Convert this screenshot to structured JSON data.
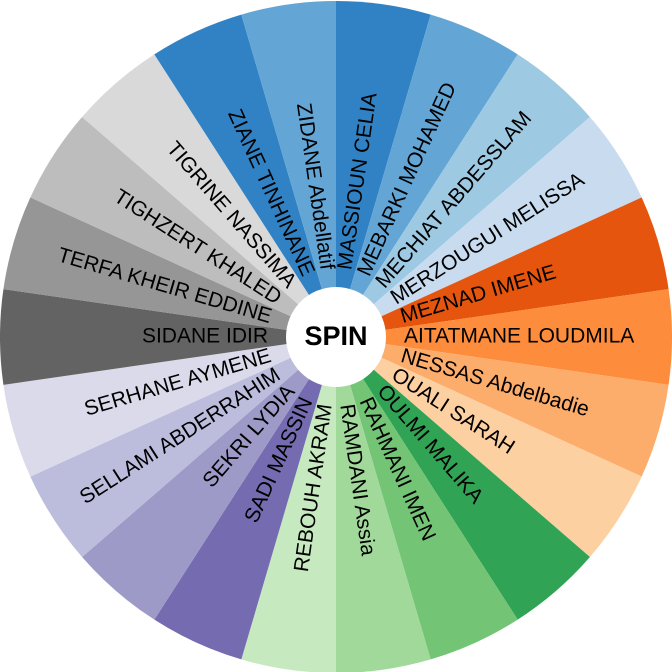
{
  "wheel": {
    "spin_label": "SPIN",
    "segments": [
      {
        "label": "MASSIOUN CELIA",
        "color": "#3182c4",
        "text_color": "#000000"
      },
      {
        "label": "MEBARKI MOHAMED",
        "color": "#63a6d6",
        "text_color": "#000000"
      },
      {
        "label": "MECHIAT ABDESSLAM",
        "color": "#9ec9e2",
        "text_color": "#000000"
      },
      {
        "label": "MERZOUGUI MELISSA",
        "color": "#c9dcef",
        "text_color": "#000000"
      },
      {
        "label": "MEZNAD IMENE",
        "color": "#e6550d",
        "text_color": "#000000"
      },
      {
        "label": "AITATMANE LOUDMILA",
        "color": "#fd8c3c",
        "text_color": "#000000"
      },
      {
        "label": "NESSAS Abdelbadie",
        "color": "#fdad6b",
        "text_color": "#000000"
      },
      {
        "label": "OUALI SARAH",
        "color": "#fdd0a2",
        "text_color": "#000000"
      },
      {
        "label": "OULMI MALIKA",
        "color": "#31a354",
        "text_color": "#000000"
      },
      {
        "label": "RAHMANI IMEN",
        "color": "#74c476",
        "text_color": "#000000"
      },
      {
        "label": "RAMDANI Assia",
        "color": "#a1d99b",
        "text_color": "#000000"
      },
      {
        "label": "REBOUH AKRAM",
        "color": "#c7e9c0",
        "text_color": "#000000"
      },
      {
        "label": "SADI MASSIN",
        "color": "#756bb1",
        "text_color": "#000000"
      },
      {
        "label": "SEKRI LYDIA",
        "color": "#9e9ac8",
        "text_color": "#000000"
      },
      {
        "label": "SELLAMI ABDERRAHIM",
        "color": "#bcbddc",
        "text_color": "#000000"
      },
      {
        "label": "SERHANE AYMENE",
        "color": "#dadaeb",
        "text_color": "#000000"
      },
      {
        "label": "SIDANE IDIR",
        "color": "#636363",
        "text_color": "#000000"
      },
      {
        "label": "TERFA KHEIR EDDINE",
        "color": "#969696",
        "text_color": "#000000"
      },
      {
        "label": "TIGHZERT KHALED",
        "color": "#bdbdbd",
        "text_color": "#000000"
      },
      {
        "label": "TIGRINE NASSIMA",
        "color": "#d9d9d9",
        "text_color": "#000000"
      },
      {
        "label": "ZIANE TINHINANE",
        "color": "#3182c4",
        "text_color": "#000000"
      },
      {
        "label": "ZIDANE Abdellatif",
        "color": "#63a6d6",
        "text_color": "#000000"
      }
    ]
  }
}
